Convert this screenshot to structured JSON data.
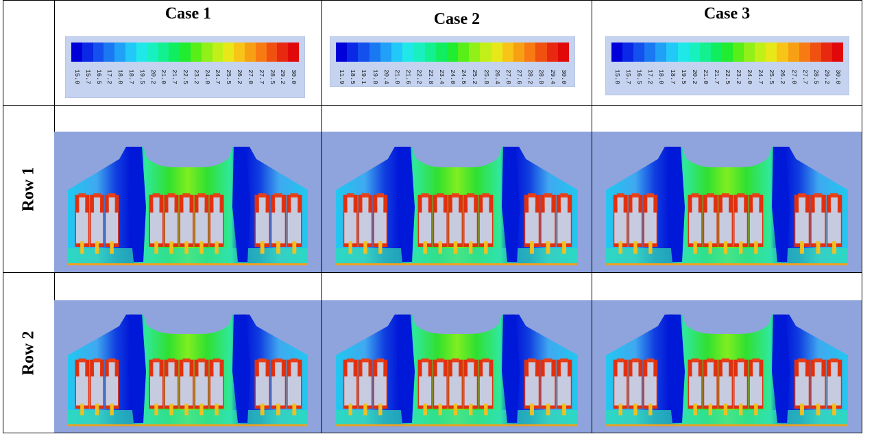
{
  "cases": [
    {
      "title": "Case 1",
      "ticks": [
        "15.0",
        "15.7",
        "16.5",
        "17.2",
        "18.0",
        "18.7",
        "19.5",
        "20.2",
        "21.0",
        "21.7",
        "22.5",
        "23.2",
        "24.0",
        "24.7",
        "25.5",
        "26.2",
        "27.0",
        "27.7",
        "28.5",
        "29.2",
        "30.0"
      ]
    },
    {
      "title": "Case 2",
      "ticks": [
        "11.9",
        "18.5",
        "19.1",
        "19.8",
        "20.4",
        "21.0",
        "21.6",
        "22.2",
        "22.8",
        "23.4",
        "24.0",
        "24.6",
        "25.2",
        "25.8",
        "26.4",
        "27.0",
        "27.6",
        "28.2",
        "28.8",
        "29.4",
        "30.0"
      ]
    },
    {
      "title": "Case 3",
      "ticks": [
        "15.0",
        "15.7",
        "16.5",
        "17.2",
        "18.0",
        "18.7",
        "19.5",
        "20.2",
        "21.0",
        "21.7",
        "22.5",
        "23.2",
        "24.0",
        "24.7",
        "25.5",
        "26.2",
        "27.0",
        "27.7",
        "28.5",
        "29.2",
        "30.0"
      ]
    }
  ],
  "rows": [
    {
      "label": "Row 1"
    },
    {
      "label": "Row 2"
    }
  ],
  "colormap": [
    "#0000d8",
    "#0a28e6",
    "#1450ee",
    "#1a78f2",
    "#20a0f6",
    "#22c8f8",
    "#20e8e8",
    "#18f0c0",
    "#12f090",
    "#10ee60",
    "#20ec30",
    "#58ee18",
    "#90f018",
    "#c0f018",
    "#e8e818",
    "#f8c418",
    "#f8a014",
    "#f87a12",
    "#f05010",
    "#e82810",
    "#e00808"
  ],
  "colors": {
    "simBackground": "#8fa3dc",
    "legendBackground": "#c5d3f0",
    "bladeFill": "#c7cbe0"
  }
}
